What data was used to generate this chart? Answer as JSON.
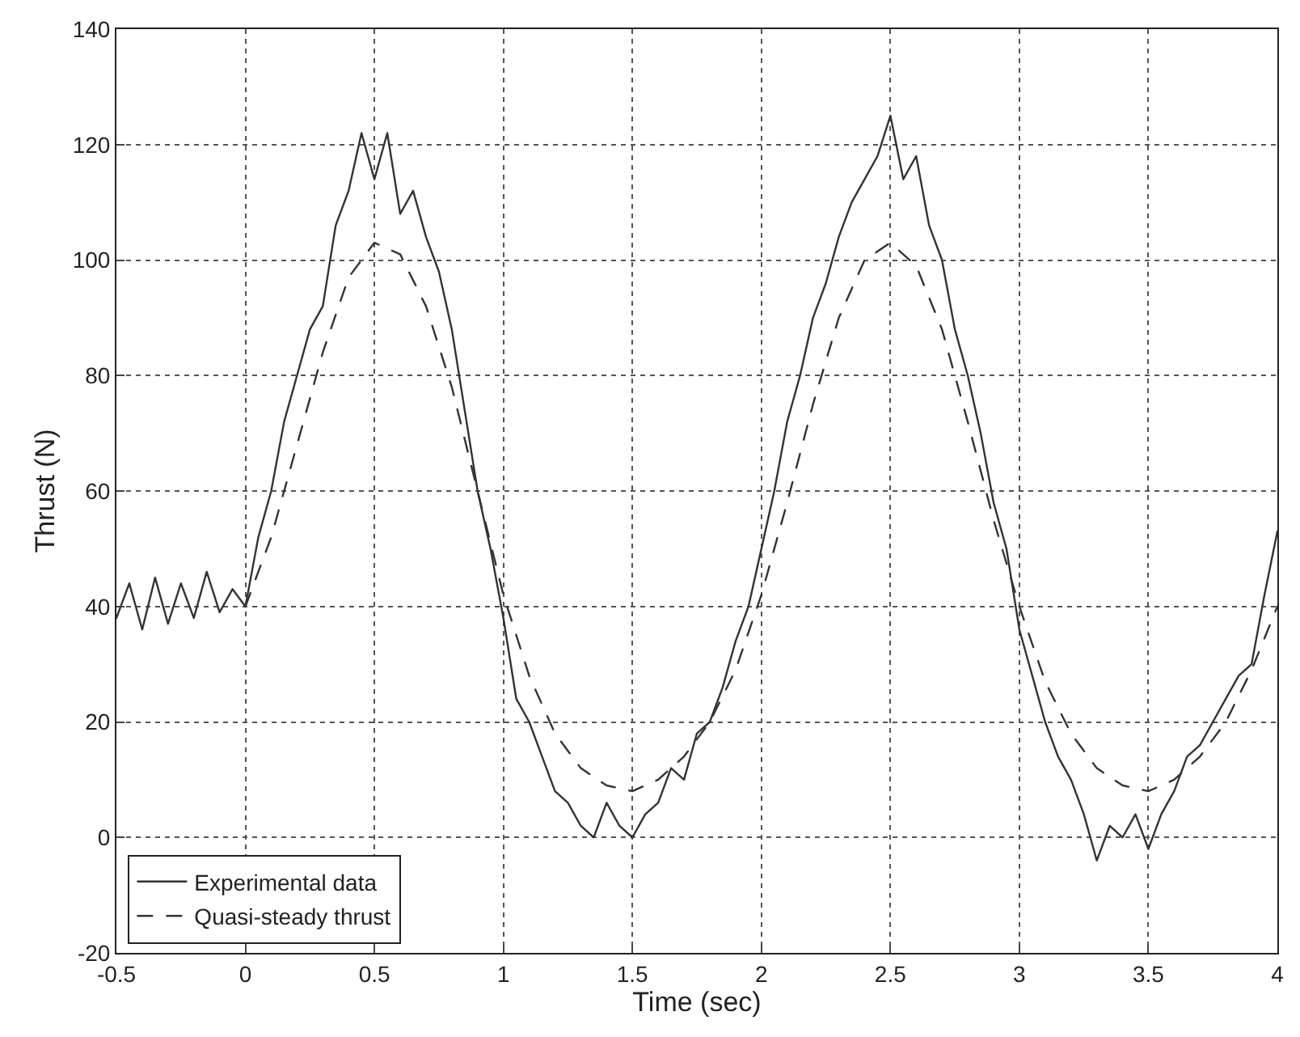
{
  "chart_data": {
    "type": "line",
    "xlabel": "Time (sec)",
    "ylabel": "Thrust (N)",
    "xlim": [
      -0.5,
      4
    ],
    "xticks": [
      -0.5,
      0,
      0.5,
      1,
      1.5,
      2,
      2.5,
      3,
      3.5,
      4
    ],
    "ylim": [
      -20,
      140
    ],
    "yticks": [
      -20,
      0,
      20,
      40,
      60,
      80,
      100,
      120,
      140
    ],
    "grid": true,
    "legend": "bottom left",
    "marker": "none",
    "series": [
      {
        "name": "Experimental data",
        "color": "#333333",
        "line_style": "solid",
        "x": [
          -0.5,
          -0.45,
          -0.4,
          -0.35,
          -0.3,
          -0.25,
          -0.2,
          -0.15,
          -0.1,
          -0.05,
          0,
          0.05,
          0.1,
          0.15,
          0.2,
          0.25,
          0.3,
          0.35,
          0.4,
          0.45,
          0.5,
          0.55,
          0.6,
          0.65,
          0.7,
          0.75,
          0.8,
          0.85,
          0.9,
          0.95,
          1,
          1.05,
          1.1,
          1.15,
          1.2,
          1.25,
          1.3,
          1.35,
          1.4,
          1.45,
          1.5,
          1.55,
          1.6,
          1.65,
          1.7,
          1.75,
          1.8,
          1.85,
          1.9,
          1.95,
          2,
          2.05,
          2.1,
          2.15,
          2.2,
          2.25,
          2.3,
          2.35,
          2.4,
          2.45,
          2.5,
          2.55,
          2.6,
          2.65,
          2.7,
          2.75,
          2.8,
          2.85,
          2.9,
          2.95,
          3,
          3.05,
          3.1,
          3.15,
          3.2,
          3.25,
          3.3,
          3.35,
          3.4,
          3.45,
          3.5,
          3.55,
          3.6,
          3.65,
          3.7,
          3.75,
          3.8,
          3.85,
          3.9,
          3.95,
          4
        ],
        "values": [
          38,
          44,
          36,
          45,
          37,
          44,
          38,
          46,
          39,
          43,
          40,
          52,
          60,
          72,
          80,
          88,
          92,
          106,
          112,
          122,
          114,
          122,
          108,
          112,
          104,
          98,
          88,
          74,
          60,
          50,
          38,
          24,
          20,
          14,
          8,
          6,
          2,
          0,
          6,
          2,
          0,
          4,
          6,
          12,
          10,
          18,
          20,
          26,
          34,
          40,
          50,
          60,
          72,
          80,
          90,
          96,
          104,
          110,
          114,
          118,
          125,
          114,
          118,
          106,
          100,
          88,
          80,
          70,
          58,
          50,
          36,
          28,
          20,
          14,
          10,
          4,
          -4,
          2,
          0,
          4,
          -2,
          4,
          8,
          14,
          16,
          20,
          24,
          28,
          30,
          42,
          53
        ]
      },
      {
        "name": "Quasi-steady thrust",
        "color": "#333333",
        "line_style": "dashed",
        "x": [
          0,
          0.1,
          0.2,
          0.3,
          0.4,
          0.5,
          0.6,
          0.7,
          0.8,
          0.9,
          1,
          1.1,
          1.2,
          1.3,
          1.4,
          1.5,
          1.6,
          1.7,
          1.8,
          1.9,
          2,
          2.1,
          2.2,
          2.3,
          2.4,
          2.5,
          2.6,
          2.7,
          2.8,
          2.9,
          3,
          3.1,
          3.2,
          3.3,
          3.4,
          3.5,
          3.6,
          3.7,
          3.8,
          3.9,
          4
        ],
        "values": [
          40,
          52,
          68,
          84,
          97,
          103,
          101,
          92,
          78,
          60,
          42,
          28,
          18,
          12,
          9,
          8,
          10,
          14,
          20,
          29,
          42,
          58,
          75,
          90,
          100,
          103,
          99,
          88,
          72,
          55,
          40,
          27,
          18,
          12,
          9,
          8,
          10,
          14,
          20,
          29,
          40
        ]
      }
    ]
  }
}
